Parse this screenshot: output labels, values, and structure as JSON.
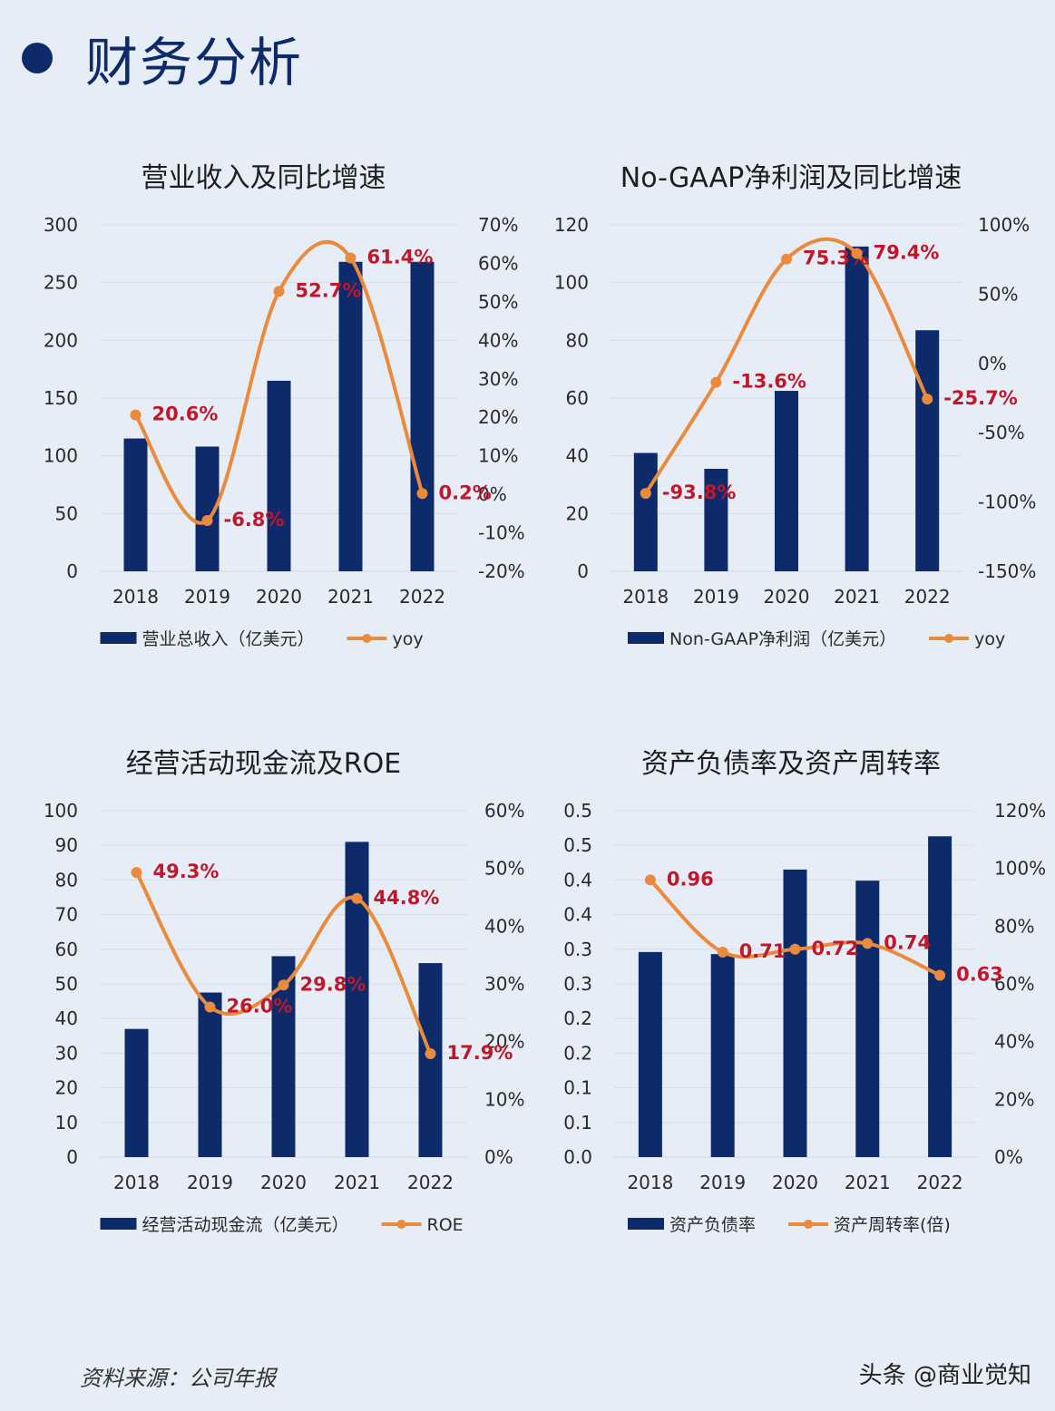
{
  "page": {
    "title": "财务分析",
    "source": "资料来源：公司年报",
    "credit": "头条 @商业觉知",
    "colors": {
      "bar": "#0d2a6b",
      "line": "#ea8a3c",
      "label": "#c0182b",
      "background": "#e6edf6"
    }
  },
  "chart_data": [
    {
      "type": "bar",
      "title": "营业收入及同比增速",
      "categories": [
        "2018",
        "2019",
        "2020",
        "2021",
        "2022"
      ],
      "left_ticks": [
        "300",
        "250",
        "200",
        "150",
        "100",
        "50",
        "0"
      ],
      "right_ticks": [
        "70%",
        "60%",
        "50%",
        "40%",
        "30%",
        "20%",
        "10%",
        "0%",
        "-10%",
        "-20%"
      ],
      "ylim": [
        0,
        300
      ],
      "y2lim": [
        -20,
        70
      ],
      "series": [
        {
          "name": "营业总收入（亿美元）",
          "kind": "bar",
          "axis": "left",
          "values": [
            115,
            108,
            165,
            268,
            268
          ]
        },
        {
          "name": "yoy",
          "kind": "line",
          "axis": "right",
          "values": [
            20.6,
            -6.8,
            52.7,
            61.4,
            0.2
          ],
          "labels": [
            "20.6%",
            "-6.8%",
            "52.7%",
            "61.4%",
            "0.2%"
          ]
        }
      ],
      "legend_position": "bottom"
    },
    {
      "type": "bar",
      "title": "No-GAAP净利润及同比增速",
      "categories": [
        "2018",
        "2019",
        "2020",
        "2021",
        "2022"
      ],
      "left_ticks": [
        "120",
        "100",
        "80",
        "60",
        "40",
        "20",
        "0"
      ],
      "right_ticks": [
        "100%",
        "50%",
        "0%",
        "-50%",
        "-100%",
        "-150%"
      ],
      "ylim": [
        0,
        120
      ],
      "y2lim": [
        -150,
        100
      ],
      "series": [
        {
          "name": "Non-GAAP净利润（亿美元）",
          "kind": "bar",
          "axis": "left",
          "values": [
            41,
            35.5,
            62.5,
            112.5,
            83.5
          ]
        },
        {
          "name": "yoy",
          "kind": "line",
          "axis": "right",
          "values": [
            -93.8,
            -13.6,
            75.3,
            79.4,
            -25.7
          ],
          "labels": [
            "-93.8%",
            "-13.6%",
            "75.3%",
            "79.4%",
            "-25.7%"
          ]
        }
      ],
      "legend_position": "bottom"
    },
    {
      "type": "bar",
      "title": "经营活动现金流及ROE",
      "categories": [
        "2018",
        "2019",
        "2020",
        "2021",
        "2022"
      ],
      "left_ticks": [
        "100",
        "90",
        "80",
        "70",
        "60",
        "50",
        "40",
        "30",
        "20",
        "10",
        "0"
      ],
      "right_ticks": [
        "60%",
        "50%",
        "40%",
        "30%",
        "20%",
        "10%",
        "0%"
      ],
      "ylim": [
        0,
        100
      ],
      "y2lim": [
        0,
        60
      ],
      "series": [
        {
          "name": "经营活动现金流（亿美元）",
          "kind": "bar",
          "axis": "left",
          "values": [
            37,
            47.5,
            58,
            91,
            56
          ]
        },
        {
          "name": "ROE",
          "kind": "line",
          "axis": "right",
          "values": [
            49.3,
            26.0,
            29.8,
            44.8,
            17.9
          ],
          "labels": [
            "49.3%",
            "26.0%",
            "29.8%",
            "44.8%",
            "17.9%"
          ]
        }
      ],
      "legend_position": "bottom"
    },
    {
      "type": "bar",
      "title": "资产负债率及资产周转率",
      "categories": [
        "2018",
        "2019",
        "2020",
        "2021",
        "2022"
      ],
      "left_ticks": [
        "0.5",
        "0.5",
        "0.4",
        "0.4",
        "0.3",
        "0.3",
        "0.2",
        "0.2",
        "0.1",
        "0.1",
        "0.0"
      ],
      "right_ticks": [
        "120%",
        "100%",
        "80%",
        "60%",
        "40%",
        "20%",
        "0%"
      ],
      "ylim": [
        0,
        0.5
      ],
      "y2lim": [
        0,
        1.2
      ],
      "series": [
        {
          "name": "资产负债率",
          "kind": "bar",
          "axis": "left",
          "values": [
            0.296,
            0.293,
            0.415,
            0.399,
            0.463
          ]
        },
        {
          "name": "资产周转率(倍)",
          "kind": "line",
          "axis": "right",
          "values": [
            0.96,
            0.71,
            0.72,
            0.74,
            0.63
          ],
          "labels": [
            "0.96",
            "0.71",
            "0.72",
            "0.74",
            "0.63"
          ]
        }
      ],
      "legend_position": "bottom"
    }
  ]
}
